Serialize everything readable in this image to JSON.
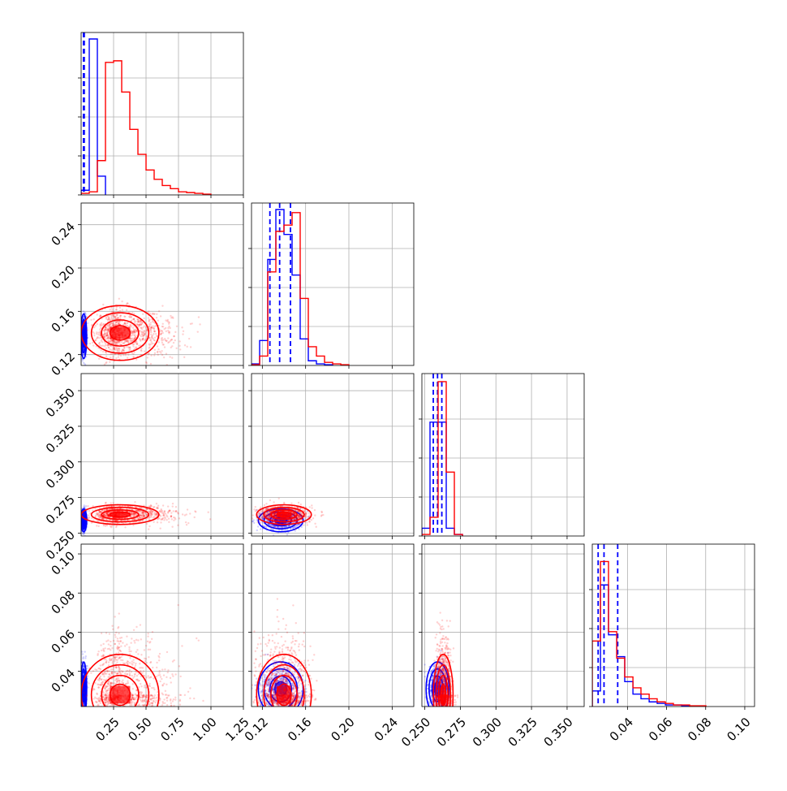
{
  "chart_data": {
    "type": "corner",
    "title": "",
    "grid": true,
    "parameters": [
      {
        "xlim": [
          0.0,
          1.25
        ],
        "ticks": [
          0.25,
          0.5,
          0.75,
          1.0,
          1.25
        ],
        "tick_labels": [
          "0.25",
          "0.50",
          "0.75",
          "1.00",
          "1.25"
        ]
      },
      {
        "xlim": [
          0.11,
          0.26
        ],
        "ticks": [
          0.12,
          0.16,
          0.2,
          0.24
        ],
        "tick_labels": [
          "0.12",
          "0.16",
          "0.20",
          "0.24"
        ]
      },
      {
        "xlim": [
          0.248,
          0.362
        ],
        "ticks": [
          0.25,
          0.275,
          0.3,
          0.325,
          0.35
        ],
        "tick_labels": [
          "0.250",
          "0.275",
          "0.300",
          "0.325",
          "0.350"
        ]
      },
      {
        "xlim": [
          0.022,
          0.105
        ],
        "ticks": [
          0.04,
          0.06,
          0.08,
          0.1
        ],
        "tick_labels": [
          "0.04",
          "0.06",
          "0.08",
          "0.10"
        ]
      }
    ],
    "series": [
      {
        "color": "#0000ff",
        "centers": [
          0.02,
          0.137,
          0.259,
          0.031
        ],
        "spreads": [
          0.01,
          0.009,
          0.0035,
          0.006
        ],
        "quantiles": [
          [
            0.018,
            0.021,
            0.024
          ],
          [
            0.127,
            0.136,
            0.146
          ],
          [
            0.256,
            0.259,
            0.262
          ],
          [
            0.025,
            0.028,
            0.035
          ]
        ],
        "histograms": [
          {
            "edges": [
              0.0,
              0.0625,
              0.125,
              0.1875
            ],
            "counts": [
              0.03,
              1.0,
              0.12
            ]
          },
          {
            "edges": [
              0.11,
              0.1175,
              0.125,
              0.1325,
              0.14,
              0.1475,
              0.155,
              0.1625,
              0.17,
              0.1775,
              0.185
            ],
            "counts": [
              0.01,
              0.16,
              0.68,
              1.0,
              0.84,
              0.58,
              0.17,
              0.03,
              0.01,
              0.005
            ]
          },
          {
            "edges": [
              0.248,
              0.2537,
              0.2594,
              0.2651,
              0.2708,
              0.2765
            ],
            "counts": [
              0.05,
              0.73,
              0.73,
              0.05,
              0.01
            ]
          },
          {
            "edges": [
              0.022,
              0.0262,
              0.0303,
              0.0345,
              0.0386,
              0.0428,
              0.0469,
              0.0511,
              0.0552,
              0.0594,
              0.0635,
              0.0677,
              0.0718
            ],
            "counts": [
              0.1,
              0.78,
              0.46,
              0.32,
              0.16,
              0.08,
              0.05,
              0.03,
              0.02,
              0.01,
              0.01,
              0.005
            ]
          }
        ]
      },
      {
        "color": "#ff0000",
        "centers": [
          0.3,
          0.14,
          0.263,
          0.028
        ],
        "spreads": [
          0.13,
          0.011,
          0.003,
          0.009
        ],
        "histograms": [
          {
            "edges": [
              0.0,
              0.0625,
              0.125,
              0.1875,
              0.25,
              0.3125,
              0.375,
              0.4375,
              0.5,
              0.5625,
              0.625,
              0.6875,
              0.75,
              0.8125,
              0.875,
              0.9375,
              1.0
            ],
            "counts": [
              0.01,
              0.02,
              0.22,
              0.85,
              0.86,
              0.66,
              0.42,
              0.26,
              0.16,
              0.1,
              0.06,
              0.04,
              0.02,
              0.015,
              0.01,
              0.005
            ]
          },
          {
            "edges": [
              0.11,
              0.1175,
              0.125,
              0.1325,
              0.14,
              0.1475,
              0.155,
              0.1625,
              0.17,
              0.1775,
              0.185,
              0.1925,
              0.2
            ],
            "counts": [
              0.005,
              0.06,
              0.6,
              0.86,
              0.9,
              0.98,
              0.43,
              0.12,
              0.06,
              0.02,
              0.01,
              0.005
            ]
          },
          {
            "edges": [
              0.248,
              0.2537,
              0.2594,
              0.2651,
              0.2708,
              0.2765
            ],
            "counts": [
              0.01,
              0.12,
              0.99,
              0.41,
              0.01
            ]
          },
          {
            "edges": [
              0.022,
              0.0262,
              0.0303,
              0.0345,
              0.0386,
              0.0428,
              0.0469,
              0.0511,
              0.0552,
              0.0594,
              0.0635,
              0.0677,
              0.0718,
              0.076,
              0.0801
            ],
            "counts": [
              0.42,
              0.93,
              0.48,
              0.31,
              0.19,
              0.12,
              0.08,
              0.05,
              0.03,
              0.02,
              0.01,
              0.01,
              0.005,
              0.005
            ]
          }
        ]
      }
    ]
  }
}
